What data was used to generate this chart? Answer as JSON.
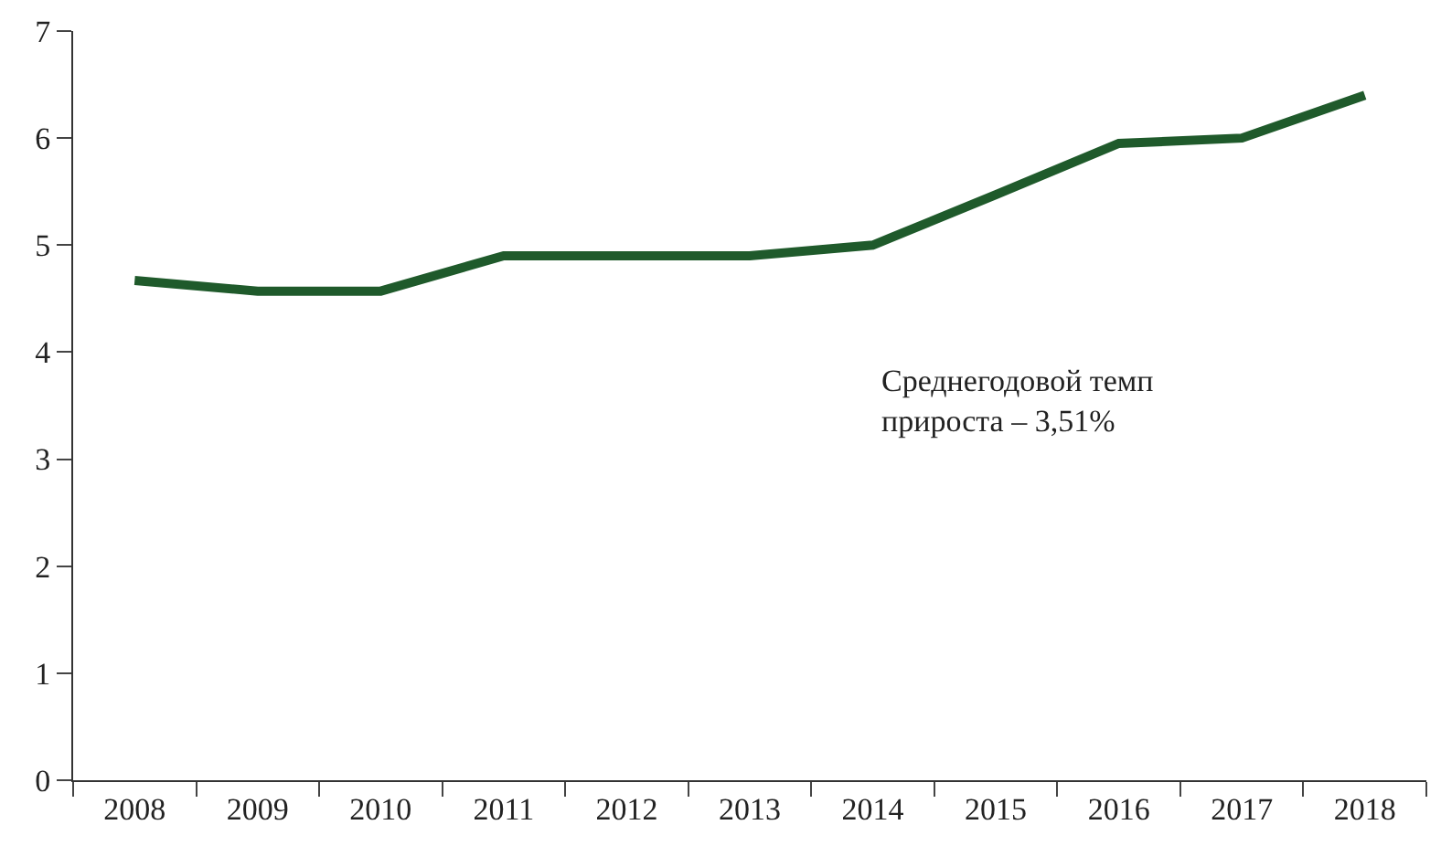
{
  "chart_data": {
    "type": "line",
    "categories": [
      "2008",
      "2009",
      "2010",
      "2011",
      "2012",
      "2013",
      "2014",
      "2015",
      "2016",
      "2017",
      "2018"
    ],
    "series": [
      {
        "color": "#1f5a2b",
        "values": [
          4.67,
          4.57,
          4.57,
          4.9,
          4.9,
          4.9,
          5.0,
          5.47,
          5.95,
          6.0,
          6.4
        ]
      }
    ],
    "ylim": [
      0,
      7
    ],
    "yticks": [
      0,
      1,
      2,
      3,
      4,
      5,
      6,
      7
    ],
    "grid": false,
    "marker": "none",
    "line_style": "solid",
    "annotations": [
      "Среднегодовой темп\nприроста – 3,51%"
    ]
  }
}
